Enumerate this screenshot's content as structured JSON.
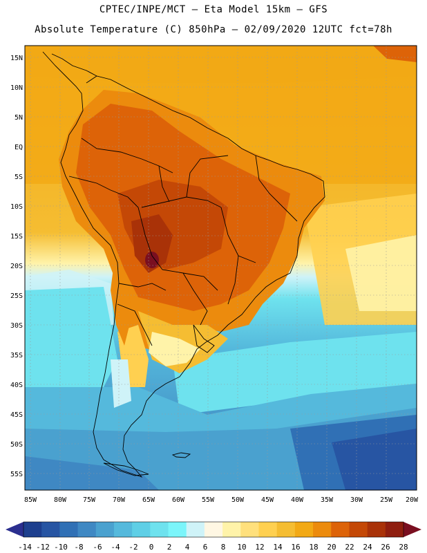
{
  "header": {
    "line1": "CPTEC/INPE/MCT –  Eta Model 15km – GFS",
    "line2": "Absolute Temperature (C) 850hPa – 02/09/2020 12UTC fct=78h"
  },
  "map": {
    "lat_labels": [
      "15N",
      "10N",
      "5N",
      "EQ",
      "5S",
      "10S",
      "15S",
      "20S",
      "25S",
      "30S",
      "35S",
      "40S",
      "45S",
      "50S",
      "55S"
    ],
    "lon_labels": [
      "85W",
      "80W",
      "75W",
      "70W",
      "65W",
      "60W",
      "55W",
      "50W",
      "45W",
      "40W",
      "35W",
      "30W",
      "25W",
      "20W"
    ],
    "lat_values": [
      15,
      10,
      5,
      0,
      -5,
      -10,
      -15,
      -20,
      -25,
      -30,
      -35,
      -40,
      -45,
      -50,
      -55
    ],
    "lon_values": [
      -85,
      -80,
      -75,
      -70,
      -65,
      -60,
      -55,
      -50,
      -45,
      -40,
      -35,
      -30,
      -25,
      -20
    ],
    "extent": {
      "lon_min": -86,
      "lon_max": -20,
      "lat_min": -57.5,
      "lat_max": 17.5
    }
  },
  "colorbar": {
    "labels": [
      "-14",
      "-12",
      "-10",
      "-8",
      "-6",
      "-4",
      "-2",
      "0",
      "2",
      "4",
      "6",
      "8",
      "10",
      "12",
      "14",
      "16",
      "18",
      "20",
      "22",
      "24",
      "26",
      "28"
    ],
    "colors": [
      "#1d3f8e",
      "#2755a3",
      "#3070b5",
      "#3f88c3",
      "#4aa1cf",
      "#55b9dc",
      "#5fcfe6",
      "#6ee2ee",
      "#7bf5fa",
      "#cff3f8",
      "#fff7e3",
      "#fff3a9",
      "#ffe07c",
      "#ffd050",
      "#f5bd32",
      "#f2a915",
      "#ec8b0d",
      "#dd6308",
      "#c44806",
      "#a93208",
      "#8f1e0f"
    ],
    "under_color": "#2b2f8f",
    "over_color": "#7a0f20"
  }
}
